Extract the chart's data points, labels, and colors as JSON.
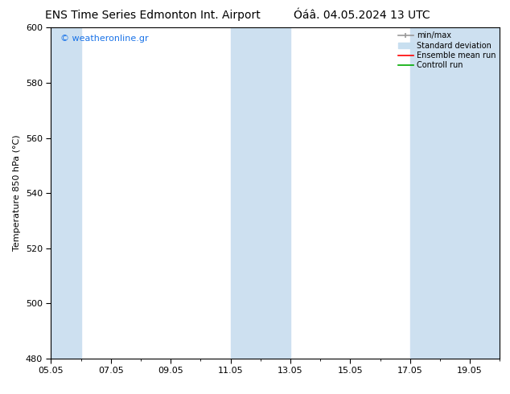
{
  "title_left": "ENS Time Series Edmonton Int. Airport",
  "title_right": "Óáâ. 04.05.2024 13 UTC",
  "ylabel": "Temperature 850 hPa (°C)",
  "xlim_dates": [
    "05.05",
    "07.05",
    "09.05",
    "11.05",
    "13.05",
    "15.05",
    "17.05",
    "19.05"
  ],
  "xtick_positions": [
    0,
    2,
    4,
    6,
    8,
    10,
    12,
    14
  ],
  "ylim": [
    480,
    600
  ],
  "yticks": [
    480,
    500,
    520,
    540,
    560,
    580,
    600
  ],
  "xlim": [
    0,
    15
  ],
  "background_color": "#ffffff",
  "plot_bg_color": "#ffffff",
  "shaded_columns": [
    {
      "x_start": 0.0,
      "x_end": 1.0,
      "color": "#cde0f0"
    },
    {
      "x_start": 6.0,
      "x_end": 8.0,
      "color": "#cde0f0"
    },
    {
      "x_start": 12.0,
      "x_end": 15.0,
      "color": "#cde0f0"
    }
  ],
  "watermark_text": "© weatheronline.gr",
  "watermark_color": "#1a73e8",
  "legend_entries": [
    {
      "label": "min/max",
      "color": "#999999",
      "lw": 1.2
    },
    {
      "label": "Standard deviation",
      "color": "#c8dff0",
      "lw": 5
    },
    {
      "label": "Ensemble mean run",
      "color": "#ff0000",
      "lw": 1.2
    },
    {
      "label": "Controll run",
      "color": "#00aa00",
      "lw": 1.2
    }
  ],
  "spine_color": "#000000",
  "tick_color": "#000000",
  "title_fontsize": 10,
  "label_fontsize": 8,
  "tick_fontsize": 8,
  "legend_fontsize": 7,
  "watermark_fontsize": 8
}
